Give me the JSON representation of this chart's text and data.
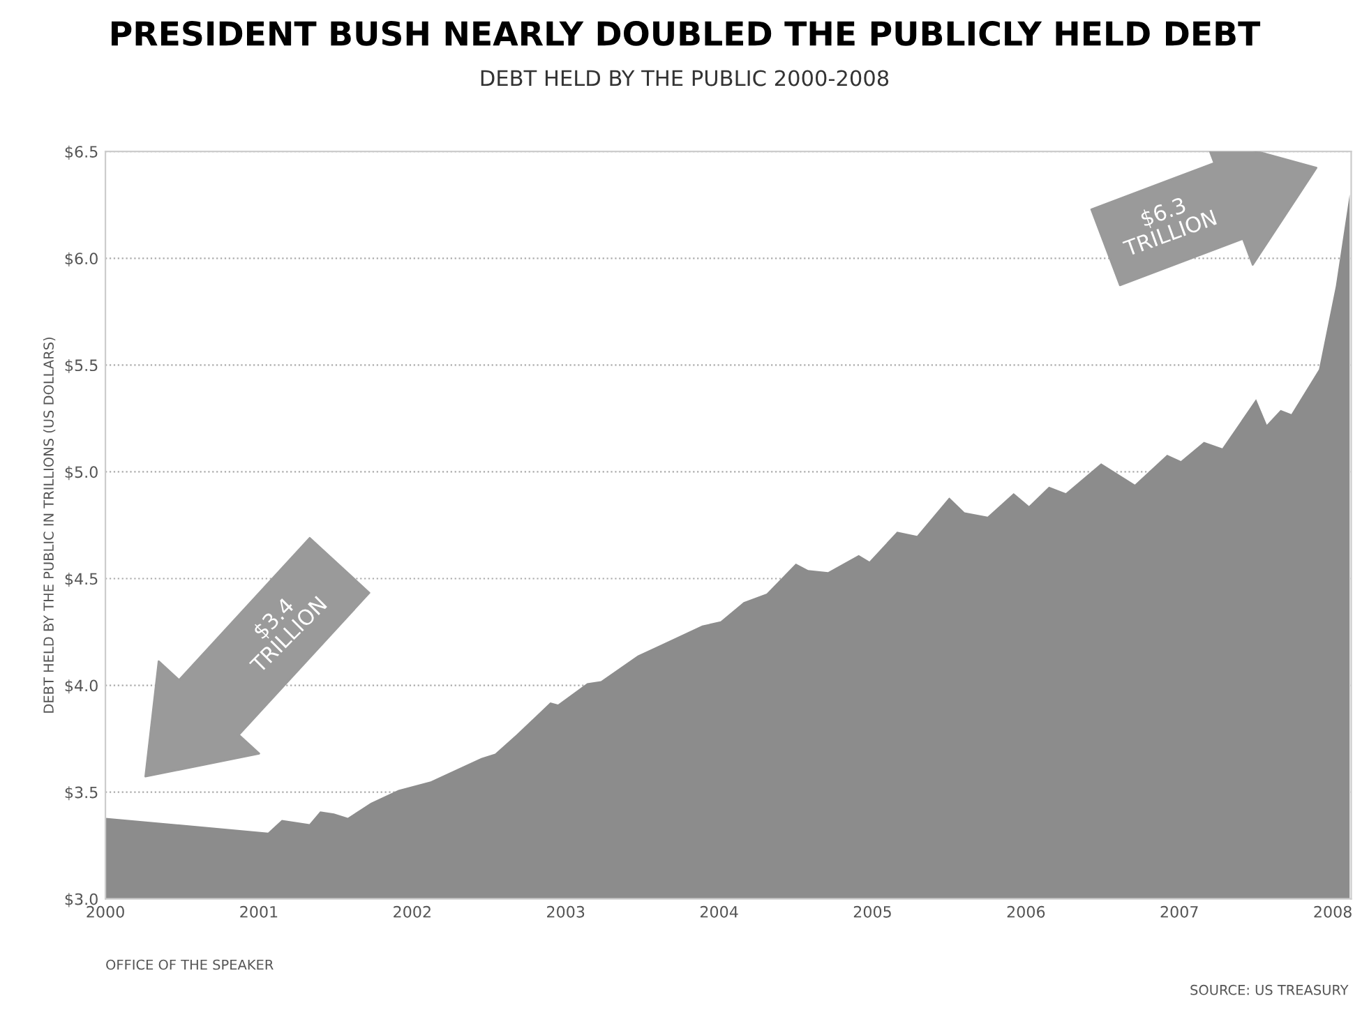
{
  "chart_data": {
    "type": "area",
    "title": "PRESIDENT BUSH NEARLY DOUBLED THE PUBLICLY HELD DEBT",
    "subtitle": "DEBT HELD BY THE PUBLIC 2000-2008",
    "ylabel": "DEBT HELD BY THE PUBLIC IN TRILLIONS (US DOLLARS)",
    "x": [
      2000.0,
      2001.06,
      2001.15,
      2001.33,
      2001.4,
      2001.49,
      2001.58,
      2001.73,
      2001.91,
      2002.12,
      2002.27,
      2002.45,
      2002.54,
      2002.68,
      2002.9,
      2002.95,
      2003.14,
      2003.23,
      2003.47,
      2003.62,
      2003.89,
      2004.01,
      2004.16,
      2004.31,
      2004.5,
      2004.58,
      2004.71,
      2004.91,
      2004.98,
      2005.16,
      2005.29,
      2005.5,
      2005.6,
      2005.75,
      2005.92,
      2006.02,
      2006.15,
      2006.26,
      2006.49,
      2006.71,
      2006.92,
      2007.01,
      2007.16,
      2007.28,
      2007.5,
      2007.57,
      2007.66,
      2007.73,
      2007.91,
      2008.02,
      2008.11
    ],
    "series": [
      {
        "color": "#8c8c8c",
        "values": [
          3.38,
          3.31,
          3.37,
          3.35,
          3.41,
          3.4,
          3.38,
          3.45,
          3.51,
          3.55,
          3.6,
          3.66,
          3.68,
          3.77,
          3.92,
          3.91,
          4.01,
          4.02,
          4.14,
          4.19,
          4.28,
          4.3,
          4.39,
          4.43,
          4.57,
          4.54,
          4.53,
          4.61,
          4.58,
          4.72,
          4.7,
          4.88,
          4.81,
          4.79,
          4.9,
          4.84,
          4.93,
          4.9,
          5.04,
          4.94,
          5.08,
          5.05,
          5.14,
          5.11,
          5.34,
          5.22,
          5.29,
          5.27,
          5.48,
          5.87,
          6.3
        ]
      }
    ],
    "xlim": [
      2000,
      2008.12
    ],
    "ylim": [
      3.0,
      6.5
    ],
    "xticks": [
      2000,
      2001,
      2002,
      2003,
      2004,
      2005,
      2006,
      2007,
      2008
    ],
    "yticks": [
      {
        "value": 3.0,
        "label": "$3.0"
      },
      {
        "value": 3.5,
        "label": "$3.5"
      },
      {
        "value": 4.0,
        "label": "$4.0"
      },
      {
        "value": 4.5,
        "label": "$4.5"
      },
      {
        "value": 5.0,
        "label": "$5.0"
      },
      {
        "value": 5.5,
        "label": "$5.5"
      },
      {
        "value": 6.0,
        "label": "$6.0"
      },
      {
        "value": 6.5,
        "label": "$6.5"
      }
    ],
    "grid": "y",
    "annotations": [
      "$3.4 TRILLION",
      "$6.3 TRILLION",
      "OFFICE OF THE SPEAKER",
      "SOURCE: US TREASURY"
    ]
  }
}
